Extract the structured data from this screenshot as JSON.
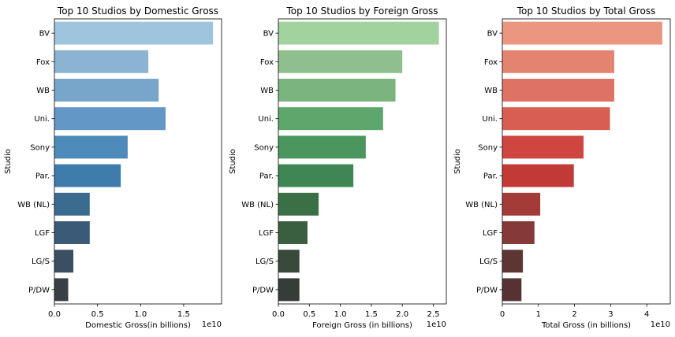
{
  "chart_data": [
    {
      "type": "bar",
      "orientation": "horizontal",
      "title": "Top 10 Studios by Domestic Gross",
      "xlabel": "Domestic Gross(in billions)",
      "ylabel": "Studio",
      "x_offset_text": "1e10",
      "categories": [
        "BV",
        "Fox",
        "WB",
        "Uni.",
        "Sony",
        "Par.",
        "WB (NL)",
        "LGF",
        "LG/S",
        "P/DW"
      ],
      "values": [
        1.84,
        1.09,
        1.21,
        1.29,
        0.85,
        0.77,
        0.41,
        0.41,
        0.22,
        0.16
      ],
      "xticks": [
        "0.0",
        "0.5",
        "1.0",
        "1.5"
      ],
      "xtick_values": [
        0,
        0.5,
        1.0,
        1.5
      ],
      "xlim": [
        0,
        1.94
      ],
      "colors": [
        "#9ec4de",
        "#8cb3d1",
        "#78a6ca",
        "#6397c5",
        "#4e8aba",
        "#3e7cac",
        "#3b6b8f",
        "#3a5a78",
        "#3b4f63",
        "#383f45"
      ]
    },
    {
      "type": "bar",
      "orientation": "horizontal",
      "title": "Top 10 Studios by Foreign Gross",
      "xlabel": "Foreign Gross (in billions)",
      "ylabel": "Studio",
      "x_offset_text": "1e10",
      "categories": [
        "BV",
        "Fox",
        "WB",
        "Uni.",
        "Sony",
        "Par.",
        "WB (NL)",
        "LGF",
        "LG/S",
        "P/DW"
      ],
      "values": [
        2.59,
        2.0,
        1.89,
        1.69,
        1.41,
        1.21,
        0.65,
        0.47,
        0.34,
        0.34
      ],
      "xticks": [
        "0.0",
        "0.5",
        "1.0",
        "1.5",
        "2.0",
        "2.5"
      ],
      "xtick_values": [
        0,
        0.5,
        1.0,
        1.5,
        2.0,
        2.5
      ],
      "xlim": [
        0,
        2.71
      ],
      "colors": [
        "#a2d29e",
        "#8fbf8e",
        "#7bb47f",
        "#5da76d",
        "#4a965e",
        "#3e8652",
        "#3b7046",
        "#3a5f40",
        "#374a3c",
        "#363c37"
      ]
    },
    {
      "type": "bar",
      "orientation": "horizontal",
      "title": "Top 10 Studios by Total Gross",
      "xlabel": "Total Gross (in billions)",
      "ylabel": "Studio",
      "x_offset_text": "1e10",
      "categories": [
        "BV",
        "Fox",
        "WB",
        "Uni.",
        "Sony",
        "Par.",
        "WB (NL)",
        "LGF",
        "LG/S",
        "P/DW"
      ],
      "values": [
        4.43,
        3.1,
        3.1,
        2.98,
        2.25,
        1.98,
        1.05,
        0.89,
        0.57,
        0.53
      ],
      "xticks": [
        "0",
        "1",
        "2",
        "3",
        "4"
      ],
      "xtick_values": [
        0,
        1,
        2,
        3,
        4
      ],
      "xlim": [
        0,
        4.65
      ],
      "colors": [
        "#ea9680",
        "#e38471",
        "#de7264",
        "#d85d53",
        "#cf4540",
        "#c13a35",
        "#a33c38",
        "#863a37",
        "#5d3533",
        "#563332"
      ]
    }
  ]
}
